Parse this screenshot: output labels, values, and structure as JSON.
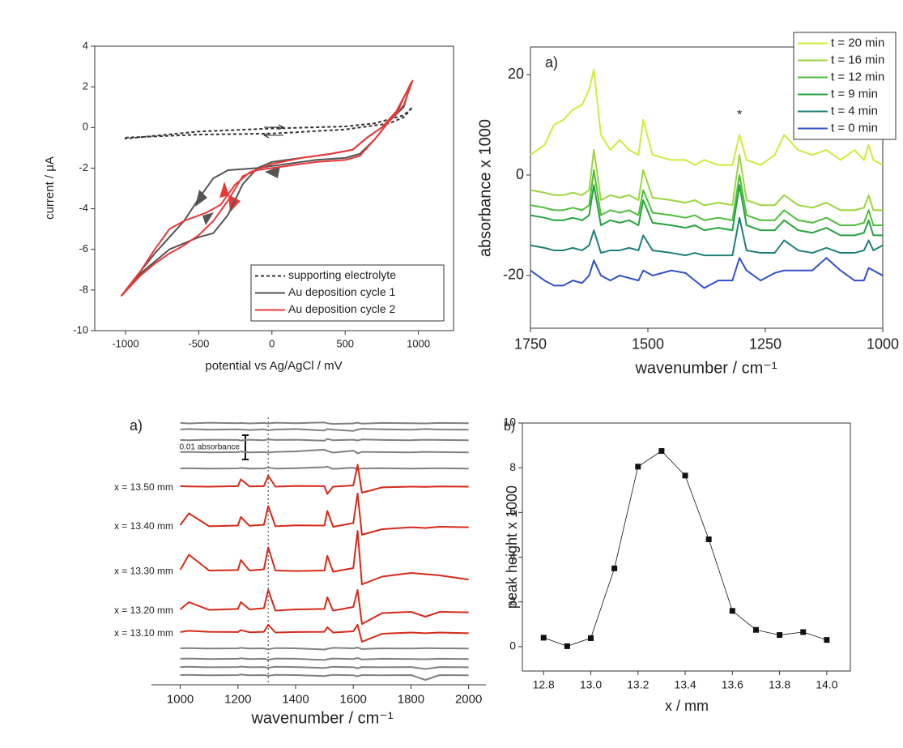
{
  "chart_data": [
    {
      "type": "line",
      "frame": true,
      "legend": "lower right",
      "x_label": "potential vs Ag/AgCl / mV",
      "y_label": "current / μA",
      "xlim": [
        -1210,
        1240
      ],
      "ylim": [
        -10,
        4
      ],
      "xticks": [
        -1000,
        -500,
        0,
        500,
        1000
      ],
      "yticks": [
        -10,
        -8,
        -6,
        -4,
        -2,
        0,
        2,
        4
      ],
      "series": [
        {
          "name": "supporting electrolyte",
          "color": "#333333",
          "dash": true,
          "x": [
            -1000,
            -500,
            0,
            500,
            800,
            900,
            960,
            900,
            700,
            500,
            0,
            -500,
            -1000,
            -1000
          ],
          "values": [
            -0.5,
            -0.35,
            -0.3,
            -0.1,
            0.2,
            0.5,
            1.0,
            0.6,
            0.2,
            0.05,
            -0.05,
            -0.2,
            -0.55,
            -0.5
          ]
        },
        {
          "name": "Au deposition cycle 1",
          "color": "#555555",
          "dash": false,
          "x": [
            -1030,
            -900,
            -700,
            -500,
            -400,
            -300,
            -200,
            -100,
            0,
            200,
            400,
            550,
            650,
            750,
            850,
            950,
            900,
            800,
            700,
            600,
            500,
            300,
            100,
            -100,
            -300,
            -400,
            -500,
            -600,
            -700,
            -800,
            -900,
            -1030
          ],
          "values": [
            -8.3,
            -7.2,
            -6.0,
            -5.4,
            -5.2,
            -4.3,
            -2.8,
            -2.0,
            -1.7,
            -1.5,
            -1.3,
            -1.1,
            -0.5,
            0,
            0.7,
            2.2,
            1.0,
            0.3,
            -0.6,
            -1.3,
            -1.5,
            -1.6,
            -1.8,
            -2.0,
            -2.1,
            -2.5,
            -3.5,
            -4.6,
            -5.4,
            -6.2,
            -7.1,
            -8.3
          ]
        },
        {
          "name": "Au deposition cycle 2",
          "color": "#e8393a",
          "dash": false,
          "x": [
            -1030,
            -900,
            -800,
            -700,
            -600,
            -450,
            -350,
            -250,
            -150,
            0,
            200,
            400,
            550,
            650,
            750,
            850,
            960,
            900,
            800,
            700,
            600,
            500,
            300,
            100,
            -100,
            -200,
            -300,
            -400,
            -500,
            -600,
            -700,
            -800,
            -900,
            -1030
          ],
          "values": [
            -8.3,
            -7.1,
            -6.0,
            -5.0,
            -4.6,
            -4.2,
            -3.8,
            -2.8,
            -2.2,
            -1.8,
            -1.5,
            -1.3,
            -1.1,
            -0.5,
            0,
            0.8,
            2.3,
            1.1,
            0.3,
            -0.6,
            -1.4,
            -1.6,
            -1.7,
            -1.9,
            -2.1,
            -2.4,
            -3.6,
            -4.6,
            -5.3,
            -5.8,
            -6.2,
            -6.7,
            -7.3,
            -8.3
          ]
        }
      ]
    },
    {
      "type": "line",
      "frame": true,
      "legend": "upper right",
      "panel_label": "a)",
      "x_label": "wavenumber / cm⁻¹",
      "y_label": "absorbance x 1000",
      "xlim": [
        1750,
        1000
      ],
      "ylim": [
        -30.5,
        25.5
      ],
      "xticks": [
        1750,
        1500,
        1250,
        1000
      ],
      "yticks": [
        -20,
        0,
        20
      ],
      "annotations": [
        {
          "text": "*",
          "x": 1305,
          "y": 10
        }
      ],
      "x": [
        1750,
        1720,
        1700,
        1680,
        1660,
        1640,
        1625,
        1615,
        1600,
        1580,
        1560,
        1540,
        1520,
        1510,
        1490,
        1450,
        1420,
        1400,
        1380,
        1350,
        1320,
        1305,
        1290,
        1260,
        1230,
        1210,
        1180,
        1150,
        1120,
        1090,
        1060,
        1040,
        1030,
        1020,
        1000
      ],
      "series": [
        {
          "name": "t = 20 min",
          "color": "#d2ea3c",
          "values": [
            4,
            6,
            10,
            11,
            13,
            14,
            17,
            21,
            8,
            5,
            7,
            5,
            4,
            11,
            4,
            3,
            3,
            2,
            3,
            2,
            2,
            8,
            3,
            2,
            4,
            8,
            5,
            4,
            5,
            3,
            5,
            3,
            6,
            3,
            2
          ]
        },
        {
          "name": "t = 16 min",
          "color": "#9bd63e",
          "values": [
            -3,
            -3.5,
            -4,
            -4,
            -3.5,
            -4,
            -3,
            5,
            -5,
            -4,
            -4.5,
            -4,
            -5,
            1,
            -4.5,
            -5,
            -5.5,
            -5,
            -6,
            -5.5,
            -6,
            4,
            -5,
            -6,
            -6,
            -4,
            -6,
            -6.5,
            -5.5,
            -7,
            -7,
            -6.5,
            -4,
            -7,
            -7
          ]
        },
        {
          "name": "t = 12 min",
          "color": "#4dbf3c",
          "values": [
            -6,
            -6.5,
            -7,
            -7,
            -6.5,
            -7,
            -6,
            1,
            -8,
            -7,
            -7.5,
            -7,
            -8,
            -3,
            -7.5,
            -8,
            -8.5,
            -8,
            -9,
            -8.5,
            -9,
            0,
            -8,
            -9,
            -9,
            -7,
            -9,
            -9.5,
            -8.5,
            -10,
            -10,
            -9.5,
            -7,
            -10,
            -10
          ]
        },
        {
          "name": "t = 9 min",
          "color": "#24a33e",
          "values": [
            -8,
            -8.5,
            -9,
            -9,
            -8.5,
            -9,
            -8,
            -2,
            -10,
            -9,
            -9.5,
            -9,
            -10,
            -5,
            -9.5,
            -10,
            -10.5,
            -10,
            -11,
            -10.5,
            -11,
            -2,
            -10,
            -11,
            -11,
            -9,
            -11,
            -11.5,
            -10.5,
            -12,
            -12,
            -11.5,
            -9,
            -12,
            -12
          ]
        },
        {
          "name": "t = 4 min",
          "color": "#1f7f78",
          "values": [
            -14,
            -14.5,
            -15,
            -15,
            -14.5,
            -15,
            -14,
            -11,
            -15.5,
            -15,
            -15,
            -14.5,
            -15,
            -12,
            -15,
            -15.5,
            -16,
            -15.5,
            -16,
            -16,
            -16,
            -8.5,
            -15,
            -15.5,
            -15.5,
            -13,
            -15,
            -15.5,
            -14.5,
            -15.5,
            -15.5,
            -15,
            -13,
            -15,
            -14
          ]
        },
        {
          "name": "t = 0 min",
          "color": "#3250c6",
          "values": [
            -19,
            -21,
            -22,
            -22,
            -21,
            -21.5,
            -20,
            -17,
            -20,
            -21,
            -20,
            -20.5,
            -21,
            -19,
            -20,
            -19,
            -19.5,
            -21,
            -22.5,
            -21,
            -21,
            -16.5,
            -19,
            -21,
            -19.5,
            -19,
            -19,
            -19,
            -16.5,
            -19,
            -21,
            -21,
            -18.5,
            -19,
            -20
          ]
        }
      ]
    },
    {
      "type": "line",
      "frame": false,
      "panel_label": "a)",
      "x_label": "wavenumber / cm⁻¹",
      "xlim": [
        900,
        2060
      ],
      "ylim": [
        0,
        0.11
      ],
      "xticks": [
        1000,
        1200,
        1400,
        1600,
        1800,
        2000
      ],
      "reference_x": 1305,
      "scale_bar": {
        "label": "0.01 absorbance",
        "value": 0.01
      },
      "x": [
        1000,
        1030,
        1100,
        1200,
        1210,
        1240,
        1290,
        1305,
        1330,
        1400,
        1500,
        1510,
        1530,
        1600,
        1615,
        1630,
        1700,
        1800,
        1850,
        1900,
        2000
      ],
      "series": [
        {
          "color": "#808080",
          "values": [
            0.1077,
            0.1075,
            0.1078,
            0.1076,
            0.1077,
            0.1075,
            0.1077,
            0.1075,
            0.1078,
            0.1076,
            0.1079,
            0.1076,
            0.1073,
            0.1075,
            0.1078,
            0.1074,
            0.1077,
            0.1076,
            0.1075,
            0.1077,
            0.1076
          ]
        },
        {
          "color": "#808080",
          "values": [
            0.105,
            0.1052,
            0.1049,
            0.1051,
            0.105,
            0.1048,
            0.1051,
            0.1047,
            0.105,
            0.1052,
            0.1046,
            0.1052,
            0.1049,
            0.1044,
            0.105,
            0.1053,
            0.1051,
            0.1049,
            0.1052,
            0.105,
            0.1049
          ]
        },
        {
          "color": "#808080",
          "values": [
            0.1007,
            0.1006,
            0.1008,
            0.1007,
            0.1005,
            0.1008,
            0.1006,
            0.1009,
            0.1007,
            0.1008,
            0.1004,
            0.1011,
            0.1006,
            0.1008,
            0.1005,
            0.1009,
            0.1007,
            0.1006,
            0.1008,
            0.1007,
            0.1006
          ]
        },
        {
          "color": "#808080",
          "values": [
            0.0957,
            0.0958,
            0.0956,
            0.0957,
            0.0959,
            0.0956,
            0.0957,
            0.0955,
            0.0958,
            0.096,
            0.0967,
            0.0962,
            0.0955,
            0.0963,
            0.0952,
            0.0958,
            0.0957,
            0.0956,
            0.0958,
            0.0957,
            0.0956
          ]
        },
        {
          "color": "#808080",
          "values": [
            0.089,
            0.0891,
            0.0889,
            0.089,
            0.0892,
            0.0889,
            0.089,
            0.0894,
            0.0889,
            0.0891,
            0.0895,
            0.0897,
            0.0888,
            0.0893,
            0.0886,
            0.089,
            0.0891,
            0.0889,
            0.089,
            0.0891,
            0.0889
          ]
        },
        {
          "name": "x = 13.50 mm",
          "color": "#d42a1a",
          "values": [
            0.0817,
            0.0816,
            0.0815,
            0.0817,
            0.0845,
            0.0816,
            0.0817,
            0.086,
            0.0815,
            0.0818,
            0.0817,
            0.0785,
            0.0815,
            0.082,
            0.0905,
            0.079,
            0.0812,
            0.0815,
            0.0814,
            0.0816,
            0.0815
          ]
        },
        {
          "name": "x = 13.40 mm",
          "color": "#d42a1a",
          "values": [
            0.0657,
            0.0705,
            0.0652,
            0.0655,
            0.069,
            0.0654,
            0.0658,
            0.0735,
            0.0652,
            0.0656,
            0.0655,
            0.0715,
            0.065,
            0.0665,
            0.0787,
            0.0617,
            0.064,
            0.0648,
            0.0645,
            0.065,
            0.0648
          ]
        },
        {
          "name": "x = 13.30 mm",
          "color": "#d42a1a",
          "values": [
            0.0473,
            0.0535,
            0.047,
            0.0472,
            0.0513,
            0.047,
            0.0475,
            0.0565,
            0.047,
            0.0468,
            0.047,
            0.053,
            0.0465,
            0.048,
            0.0633,
            0.0413,
            0.0445,
            0.046,
            0.0455,
            0.045,
            0.0433
          ]
        },
        {
          "name": "x = 13.20 mm",
          "color": "#d42a1a",
          "values": [
            0.031,
            0.034,
            0.0308,
            0.0312,
            0.034,
            0.031,
            0.0315,
            0.039,
            0.0305,
            0.031,
            0.0312,
            0.036,
            0.0305,
            0.032,
            0.039,
            0.025,
            0.0295,
            0.03,
            0.028,
            0.03,
            0.0298
          ]
        },
        {
          "name": "x = 13.10 mm",
          "color": "#d42a1a",
          "values": [
            0.0217,
            0.0222,
            0.0218,
            0.0217,
            0.0225,
            0.0216,
            0.0218,
            0.0247,
            0.0215,
            0.0217,
            0.0218,
            0.0237,
            0.0215,
            0.022,
            0.0247,
            0.0177,
            0.021,
            0.0215,
            0.0212,
            0.0215,
            0.0212
          ]
        },
        {
          "color": "#808080",
          "values": [
            0.015,
            0.0151,
            0.0149,
            0.015,
            0.0152,
            0.0149,
            0.015,
            0.0146,
            0.0151,
            0.015,
            0.0145,
            0.0148,
            0.0152,
            0.015,
            0.0153,
            0.0147,
            0.015,
            0.0149,
            0.0151,
            0.015,
            0.0149
          ]
        },
        {
          "color": "#808080",
          "values": [
            0.0107,
            0.0108,
            0.0106,
            0.0107,
            0.0109,
            0.0106,
            0.0107,
            0.0103,
            0.0108,
            0.0107,
            0.0102,
            0.0105,
            0.0108,
            0.0106,
            0.011,
            0.0104,
            0.0107,
            0.0106,
            0.0105,
            0.0107,
            0.0106
          ]
        },
        {
          "color": "#808080",
          "values": [
            0.0073,
            0.0074,
            0.0072,
            0.0073,
            0.0075,
            0.0072,
            0.0073,
            0.007,
            0.0074,
            0.0073,
            0.0069,
            0.0071,
            0.0074,
            0.0072,
            0.0068,
            0.0073,
            0.0072,
            0.0073,
            0.0065,
            0.0073,
            0.0072
          ]
        },
        {
          "color": "#808080",
          "values": [
            0.004,
            0.0041,
            0.0039,
            0.004,
            0.0042,
            0.0039,
            0.004,
            0.0037,
            0.0041,
            0.004,
            0.0036,
            0.0038,
            0.0041,
            0.0039,
            0.0035,
            0.004,
            0.0039,
            0.004,
            0.002,
            0.004,
            0.0039
          ]
        }
      ]
    },
    {
      "type": "line",
      "frame": true,
      "markers": true,
      "panel_label": "b)",
      "x_label": "x / mm",
      "y_label": "peak height x 1000",
      "xlim": [
        12.71,
        14.1
      ],
      "ylim": [
        -1.09,
        10
      ],
      "xticks": [
        12.8,
        {
          "value": 13,
          "label": "13.0"
        },
        13.2,
        13.4,
        13.6,
        13.8,
        {
          "value": 14,
          "label": "14.0"
        }
      ],
      "yticks": [
        0,
        2,
        4,
        6,
        8,
        10
      ],
      "x": [
        12.8,
        12.9,
        13.0,
        13.1,
        13.2,
        13.3,
        13.4,
        13.5,
        13.6,
        13.7,
        13.8,
        13.9,
        14.0
      ],
      "series": [
        {
          "color": "#111111",
          "values": [
            0.4,
            0.02,
            0.38,
            3.5,
            8.05,
            8.75,
            7.65,
            4.8,
            1.6,
            0.75,
            0.52,
            0.65,
            0.3
          ]
        }
      ]
    }
  ]
}
